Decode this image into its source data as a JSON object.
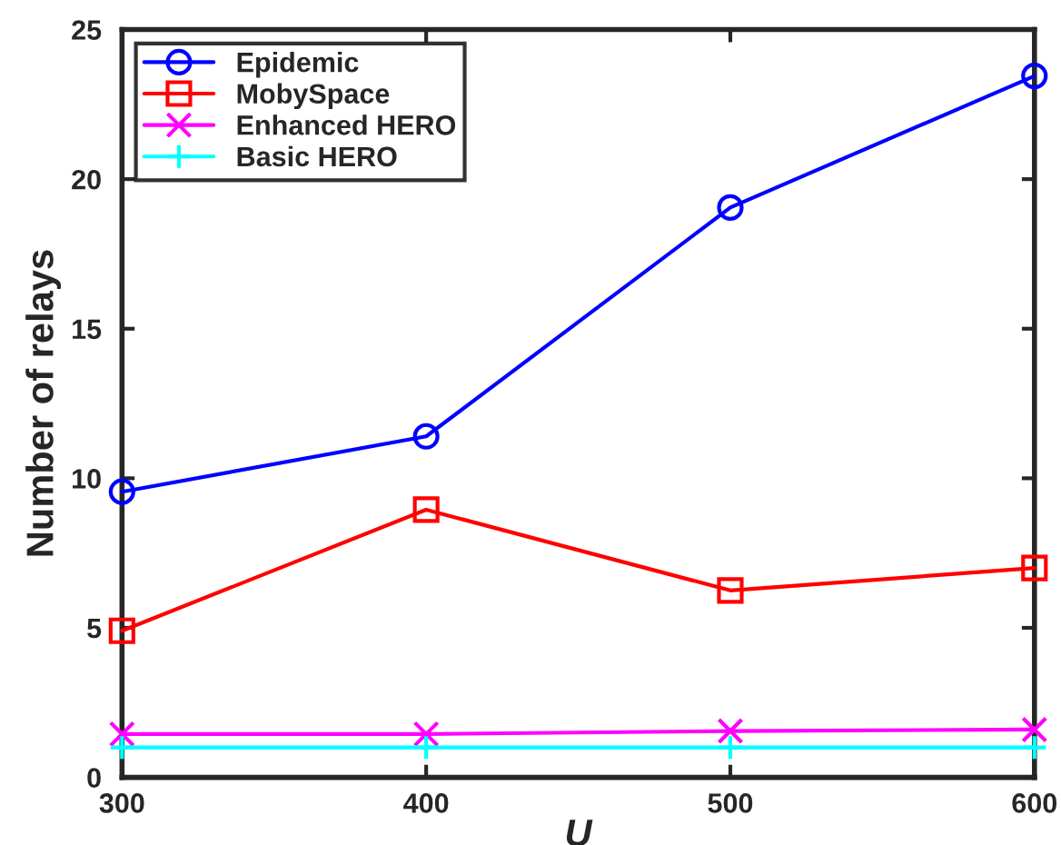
{
  "chart_data": {
    "type": "line",
    "xlabel": "U",
    "ylabel": "Number of relays",
    "x": [
      300,
      400,
      500,
      600
    ],
    "series": [
      {
        "name": "Epidemic",
        "color": "#0000ff",
        "marker": "circle",
        "values": [
          9.55,
          11.4,
          19.05,
          23.45
        ]
      },
      {
        "name": "MobySpace",
        "color": "#ff0000",
        "marker": "square",
        "values": [
          4.9,
          8.95,
          6.25,
          7.0
        ]
      },
      {
        "name": "Enhanced HERO",
        "color": "#ff00ff",
        "marker": "cross",
        "values": [
          1.45,
          1.45,
          1.55,
          1.6
        ]
      },
      {
        "name": "Basic HERO",
        "color": "#00ffff",
        "marker": "plus",
        "values": [
          1.0,
          1.0,
          1.0,
          1.0
        ]
      }
    ],
    "xlim": [
      300,
      600
    ],
    "ylim": [
      0,
      25
    ],
    "xticks": [
      300,
      400,
      500,
      600
    ],
    "yticks": [
      0,
      5,
      10,
      15,
      20,
      25
    ],
    "grid": false,
    "legend": "top left",
    "line_style": "solid"
  }
}
